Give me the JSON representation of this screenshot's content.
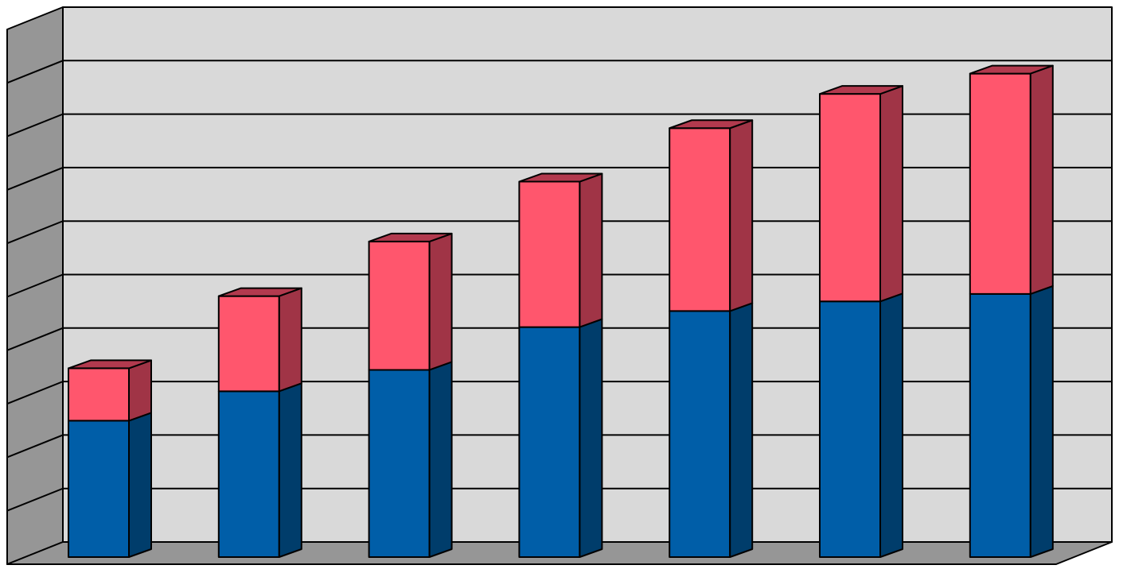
{
  "chart_data": {
    "type": "bar",
    "stacked": true,
    "three_d": true,
    "grid": true,
    "legend": "none",
    "title": "",
    "xlabel": "",
    "ylabel": "",
    "ylim": [
      0,
      10
    ],
    "categories": [
      "",
      "",
      "",
      "",
      "",
      "",
      ""
    ],
    "series": [
      {
        "values": [
          2.55,
          3.1,
          3.5,
          4.3,
          4.6,
          4.78,
          4.92
        ]
      },
      {
        "values": [
          0.98,
          1.78,
          2.4,
          2.72,
          3.42,
          3.88,
          4.12
        ]
      }
    ]
  },
  "colors": {
    "series_front": [
      "#005ea8",
      "#ff566d"
    ],
    "series_side": [
      "#003d6b",
      "#a03446"
    ],
    "series_top": [
      "#003d6b",
      "#b23a4e"
    ],
    "back_wall": "#d9d9d9",
    "side_wall": "#969696",
    "floor": "#969696",
    "gridline": "#000000"
  }
}
